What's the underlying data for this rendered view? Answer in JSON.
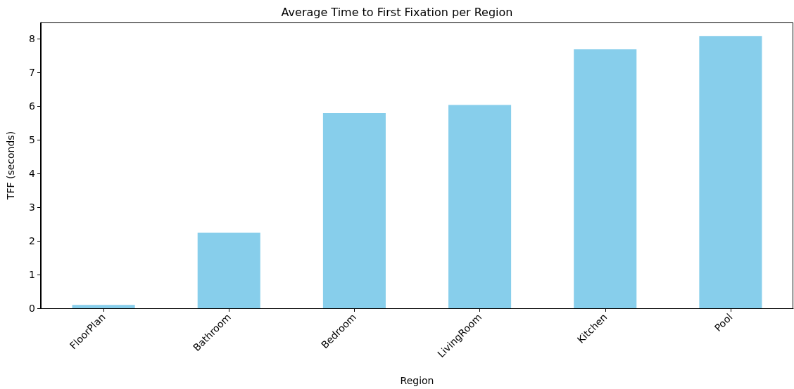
{
  "chart_data": {
    "type": "bar",
    "title": "Average Time to First Fixation per Region",
    "xlabel": "Region",
    "ylabel": "TFF (seconds)",
    "categories": [
      "FloorPlan",
      "Bathroom",
      "Bedroom",
      "LivingRoom",
      "Kitchen",
      "Pool"
    ],
    "values": [
      0.1,
      2.24,
      5.8,
      6.04,
      7.69,
      8.09
    ],
    "color": "#87ceeb",
    "ylim": [
      0,
      8.49
    ],
    "yticks": [
      0,
      1,
      2,
      3,
      4,
      5,
      6,
      7,
      8
    ],
    "grid": false
  }
}
